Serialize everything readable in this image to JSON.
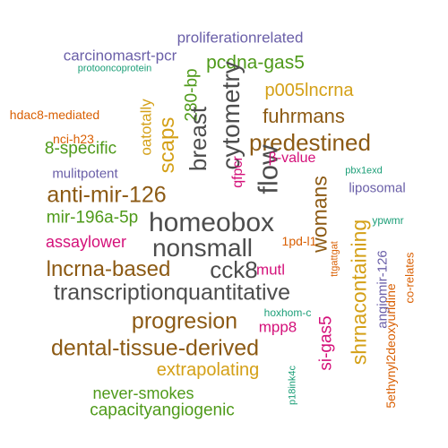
{
  "palette": {
    "gray": "#4d4d4d",
    "brown": "#8c5a14",
    "gold": "#d4a017",
    "green": "#4f9a1a",
    "magenta": "#d4117a",
    "purple": "#6a5fa8",
    "orange": "#d95f02",
    "teal": "#1b9e77"
  },
  "words": [
    {
      "text": "proliferationrelated",
      "color": "purple"
    },
    {
      "text": "carcinomasrt-pcr",
      "color": "purple"
    },
    {
      "text": "protooncoprotein",
      "color": "teal"
    },
    {
      "text": "pcdna-gas5",
      "color": "green"
    },
    {
      "text": "280-bp",
      "color": "green"
    },
    {
      "text": "cytometry",
      "color": "gray"
    },
    {
      "text": "breast",
      "color": "gray"
    },
    {
      "text": "oatotally",
      "color": "gold"
    },
    {
      "text": "scaps",
      "color": "gold"
    },
    {
      "text": "p005lncrna",
      "color": "gold"
    },
    {
      "text": "hdac8-mediated",
      "color": "orange"
    },
    {
      "text": "nci-h23",
      "color": "orange"
    },
    {
      "text": "fuhrmans",
      "color": "brown"
    },
    {
      "text": "predestined",
      "color": "brown"
    },
    {
      "text": "8-specific",
      "color": "green"
    },
    {
      "text": "mulitpotent",
      "color": "purple"
    },
    {
      "text": "flow",
      "color": "gray"
    },
    {
      "text": "qfpcr",
      "color": "magenta"
    },
    {
      "text": "β-value",
      "color": "magenta"
    },
    {
      "text": "pbx1exd",
      "color": "teal"
    },
    {
      "text": "liposomal",
      "color": "purple"
    },
    {
      "text": "womans",
      "color": "brown"
    },
    {
      "text": "anti-mir-126",
      "color": "brown"
    },
    {
      "text": "mir-196a-5p",
      "color": "green"
    },
    {
      "text": "homeobox",
      "color": "gray"
    },
    {
      "text": "ypwmr",
      "color": "teal"
    },
    {
      "text": "assaylower",
      "color": "magenta"
    },
    {
      "text": "nonsmall",
      "color": "gray"
    },
    {
      "text": "1pd-l1",
      "color": "orange"
    },
    {
      "text": "ttgattgat",
      "color": "orange"
    },
    {
      "text": "shrnacontaining",
      "color": "gold"
    },
    {
      "text": "angiomir-126",
      "color": "purple"
    },
    {
      "text": "co-relates",
      "color": "orange"
    },
    {
      "text": "lncrna-based",
      "color": "brown"
    },
    {
      "text": "cck8",
      "color": "gray"
    },
    {
      "text": "mutl",
      "color": "magenta"
    },
    {
      "text": "transcriptionquantitative",
      "color": "gray"
    },
    {
      "text": "hoxhom-c",
      "color": "teal"
    },
    {
      "text": "progresion",
      "color": "brown"
    },
    {
      "text": "mpp8",
      "color": "magenta"
    },
    {
      "text": "si-gas5",
      "color": "magenta"
    },
    {
      "text": "dental-tissue-derived",
      "color": "brown"
    },
    {
      "text": "5ethynyl2deoxyuridine",
      "color": "orange"
    },
    {
      "text": "extrapolating",
      "color": "gold"
    },
    {
      "text": "p18ink4c",
      "color": "teal"
    },
    {
      "text": "never-smokes",
      "color": "green"
    },
    {
      "text": "capacityangiogenic",
      "color": "green"
    }
  ]
}
